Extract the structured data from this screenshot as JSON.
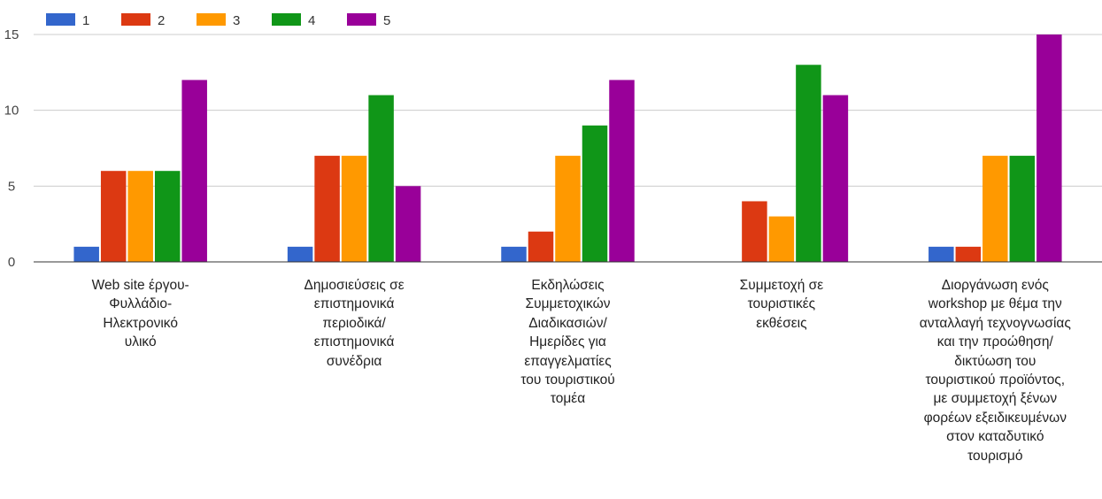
{
  "chart_data": {
    "type": "bar",
    "categories": [
      "Web site έργου-\nΦυλλάδιο-\nΗλεκτρονικό\nυλικό",
      "Δημοσιεύσεις σε\nεπιστημονικά\nπεριοδικά/\nεπιστημονικά\nσυνέδρια",
      "Εκδηλώσεις\nΣυμμετοχικών\nΔιαδικασιών/\nΗμερίδες για\nεπαγγελματίες\nτου τουριστικού\nτομέα",
      "Συμμετοχή σε\nτουριστικές\nεκθέσεις",
      "Διοργάνωση ενός\nworkshop με θέμα την\nανταλλαγή τεχνογνωσίας\nκαι την προώθηση/\nδικτύωση του\nτουριστικού προϊόντος,\nμε συμμετοχή ξένων\nφορέων εξειδικευμένων\nστον καταδυτικό\nτουρισμό"
    ],
    "series": [
      {
        "name": "1",
        "color": "#3366cc",
        "values": [
          1,
          1,
          1,
          0,
          1
        ]
      },
      {
        "name": "2",
        "color": "#dc3912",
        "values": [
          6,
          7,
          2,
          4,
          1
        ]
      },
      {
        "name": "3",
        "color": "#ff9900",
        "values": [
          6,
          7,
          7,
          3,
          7
        ]
      },
      {
        "name": "4",
        "color": "#109618",
        "values": [
          6,
          11,
          9,
          13,
          7
        ]
      },
      {
        "name": "5",
        "color": "#990099",
        "values": [
          12,
          5,
          12,
          11,
          15
        ]
      }
    ],
    "yticks": [
      "0",
      "5",
      "10",
      "15"
    ],
    "ylim": [
      0,
      15
    ],
    "grid": true,
    "legend": "top-left",
    "title": "",
    "xlabel": "",
    "ylabel": ""
  }
}
